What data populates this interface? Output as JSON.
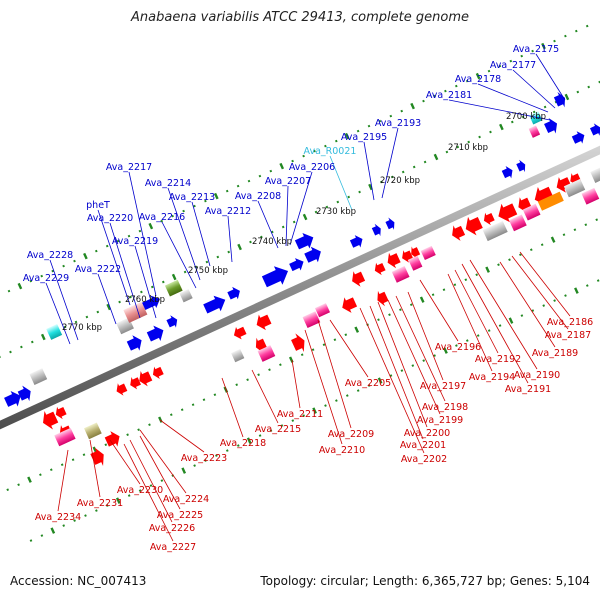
{
  "title": "Anabaena variabilis ATCC 29413, complete genome",
  "footer": {
    "accession": "Accession: NC_007413",
    "summary": "Topology: circular; Length: 6,365,727 bp; Genes: 5,104"
  },
  "colors": {
    "backbone": "#8c8c8c",
    "forward_label": "#0000cc",
    "reverse_label": "#cc0000",
    "rna_label": "#33bbdd",
    "tick": "#228822"
  },
  "kbp_ticks": [
    {
      "label": "2700 kbp",
      "x": 0
    },
    {
      "label": "2710 kbp",
      "x": 0
    },
    {
      "label": "2720 kbp",
      "x": 0
    },
    {
      "label": "2730 kbp",
      "x": 0
    },
    {
      "label": "2740 kbp",
      "x": 0
    },
    {
      "label": "2750 kbp",
      "x": 0
    },
    {
      "label": "2760 kbp",
      "x": 0
    },
    {
      "label": "2770 kbp",
      "x": 0
    }
  ],
  "forward_genes": [
    "Ava_2175",
    "Ava_2177",
    "Ava_2178",
    "Ava_2181",
    "Ava_2193",
    "Ava_2195",
    "Ava_R0021",
    "Ava_2206",
    "Ava_2207",
    "Ava_2208",
    "Ava_2212",
    "Ava_2213",
    "Ava_2214",
    "Ava_2216",
    "Ava_2217",
    "pheT",
    "Ava_2220",
    "Ava_2219",
    "Ava_2222",
    "Ava_2228",
    "Ava_2229"
  ],
  "reverse_genes": [
    "Ava_2186",
    "Ava_2187",
    "Ava_2189",
    "Ava_2190",
    "Ava_2191",
    "Ava_2192",
    "Ava_2194",
    "Ava_2196",
    "Ava_2197",
    "Ava_2198",
    "Ava_2199",
    "Ava_2200",
    "Ava_2201",
    "Ava_2202",
    "Ava_2205",
    "Ava_2209",
    "Ava_2210",
    "Ava_2211",
    "Ava_2215",
    "Ava_2218",
    "Ava_2223",
    "Ava_2224",
    "Ava_2225",
    "Ava_2226",
    "Ava_2227",
    "Ava_2230",
    "Ava_2231",
    "Ava_2234"
  ]
}
